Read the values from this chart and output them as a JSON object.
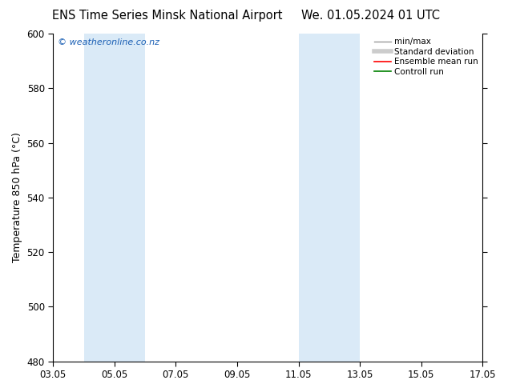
{
  "title_left": "ENS Time Series Minsk National Airport",
  "title_right": "We. 01.05.2024 01 UTC",
  "ylabel": "Temperature 850 hPa (°C)",
  "ylim": [
    480,
    600
  ],
  "yticks": [
    480,
    500,
    520,
    540,
    560,
    580,
    600
  ],
  "xtick_labels": [
    "03.05",
    "05.05",
    "07.05",
    "09.05",
    "11.05",
    "13.05",
    "15.05",
    "17.05"
  ],
  "xlim": [
    3,
    17
  ],
  "xtick_positions": [
    3,
    5,
    7,
    9,
    11,
    13,
    15,
    17
  ],
  "shaded_bands": [
    {
      "x_start": 4.0,
      "x_end": 6.0
    },
    {
      "x_start": 11.0,
      "x_end": 13.0
    }
  ],
  "band_color": "#daeaf7",
  "background_color": "#ffffff",
  "watermark_text": "© weatheronline.co.nz",
  "watermark_color": "#1a5fb4",
  "legend_items": [
    {
      "label": "min/max",
      "color": "#999999",
      "lw": 1.0
    },
    {
      "label": "Standard deviation",
      "color": "#cccccc",
      "lw": 4.0
    },
    {
      "label": "Ensemble mean run",
      "color": "#ff0000",
      "lw": 1.2
    },
    {
      "label": "Controll run",
      "color": "#008000",
      "lw": 1.2
    }
  ],
  "tick_label_fontsize": 8.5,
  "axis_label_fontsize": 9,
  "title_fontsize": 10.5
}
